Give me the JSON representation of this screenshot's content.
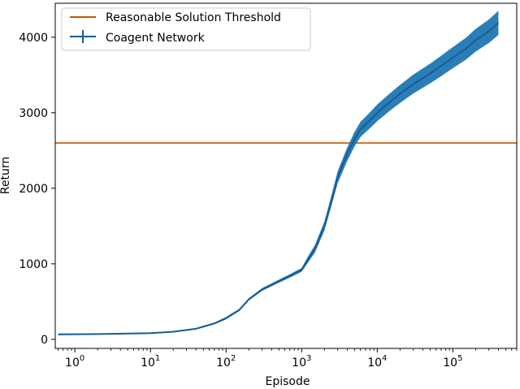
{
  "chart_data": {
    "type": "line",
    "xlabel": "Episode",
    "ylabel": "Return",
    "x_scale": "log",
    "xlim": [
      0.55,
      700000
    ],
    "ylim": [
      -120,
      4450
    ],
    "x_ticks": [
      {
        "value": 1,
        "base": "10",
        "exp": "0"
      },
      {
        "value": 10,
        "base": "10",
        "exp": "1"
      },
      {
        "value": 100,
        "base": "10",
        "exp": "2"
      },
      {
        "value": 1000,
        "base": "10",
        "exp": "3"
      },
      {
        "value": 10000,
        "base": "10",
        "exp": "4"
      },
      {
        "value": 100000,
        "base": "10",
        "exp": "5"
      }
    ],
    "y_ticks": [
      {
        "value": 0,
        "label": "0"
      },
      {
        "value": 1000,
        "label": "1000"
      },
      {
        "value": 2000,
        "label": "2000"
      },
      {
        "value": 3000,
        "label": "3000"
      },
      {
        "value": 4000,
        "label": "4000"
      }
    ],
    "grid": false,
    "legend_position": "top-left",
    "series": [
      {
        "name": "Reasonable Solution Threshold",
        "kind": "hline",
        "value": 2600,
        "color": "#cc5500"
      },
      {
        "name": "Coagent Network",
        "kind": "line_with_error",
        "color": "#1a5c92",
        "band_color": "#1f77b4",
        "x": [
          0.6,
          1,
          3,
          10,
          20,
          40,
          70,
          100,
          150,
          200,
          300,
          500,
          700,
          1000,
          1200,
          1500,
          2000,
          2500,
          3000,
          4000,
          5000,
          6000,
          8000,
          10000,
          15000,
          20000,
          30000,
          50000,
          70000,
          100000,
          150000,
          200000,
          300000,
          400000
        ],
        "y": [
          65,
          67,
          72,
          82,
          100,
          140,
          210,
          280,
          390,
          530,
          660,
          770,
          840,
          920,
          1050,
          1200,
          1500,
          1850,
          2150,
          2450,
          2650,
          2780,
          2900,
          3000,
          3150,
          3250,
          3380,
          3520,
          3620,
          3730,
          3850,
          3960,
          4080,
          4190
        ],
        "err": [
          8,
          8,
          8,
          8,
          8,
          10,
          12,
          15,
          15,
          15,
          18,
          20,
          22,
          25,
          40,
          50,
          60,
          70,
          80,
          90,
          95,
          100,
          105,
          110,
          115,
          120,
          125,
          130,
          135,
          140,
          145,
          150,
          155,
          160
        ]
      }
    ]
  }
}
